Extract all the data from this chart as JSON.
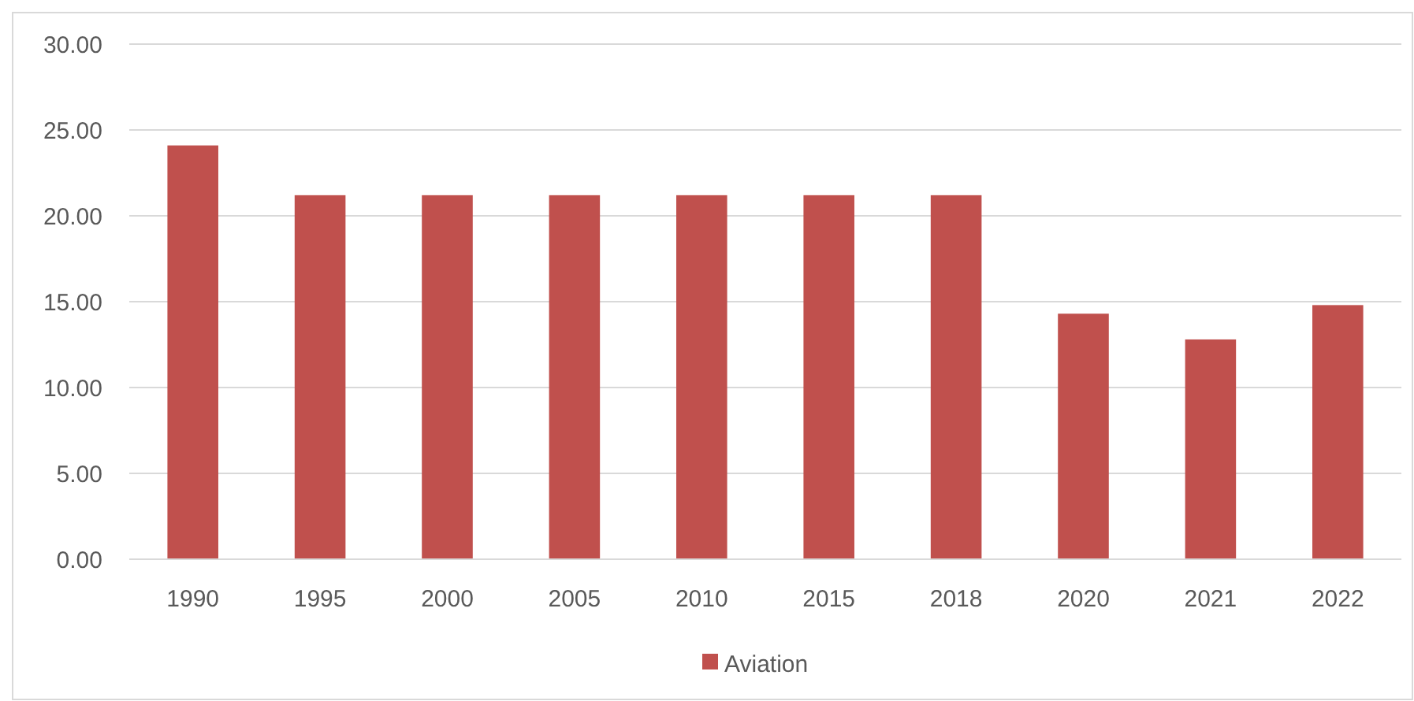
{
  "chart_data": {
    "type": "bar",
    "categories": [
      "1990",
      "1995",
      "2000",
      "2005",
      "2010",
      "2015",
      "2018",
      "2020",
      "2021",
      "2022"
    ],
    "series": [
      {
        "name": "Aviation",
        "color": "#c0504d",
        "values": [
          24.1,
          21.2,
          21.2,
          21.2,
          21.2,
          21.2,
          21.2,
          14.3,
          12.8,
          14.8
        ]
      }
    ],
    "ylim": [
      0,
      30
    ],
    "yticks": [
      {
        "value": 0,
        "label": "0.00"
      },
      {
        "value": 5,
        "label": "5.00"
      },
      {
        "value": 10,
        "label": "10.00"
      },
      {
        "value": 15,
        "label": "15.00"
      },
      {
        "value": 20,
        "label": "20.00"
      },
      {
        "value": 25,
        "label": "25.00"
      },
      {
        "value": 30,
        "label": "30.00"
      }
    ],
    "grid": "y",
    "legend": "bottom"
  }
}
